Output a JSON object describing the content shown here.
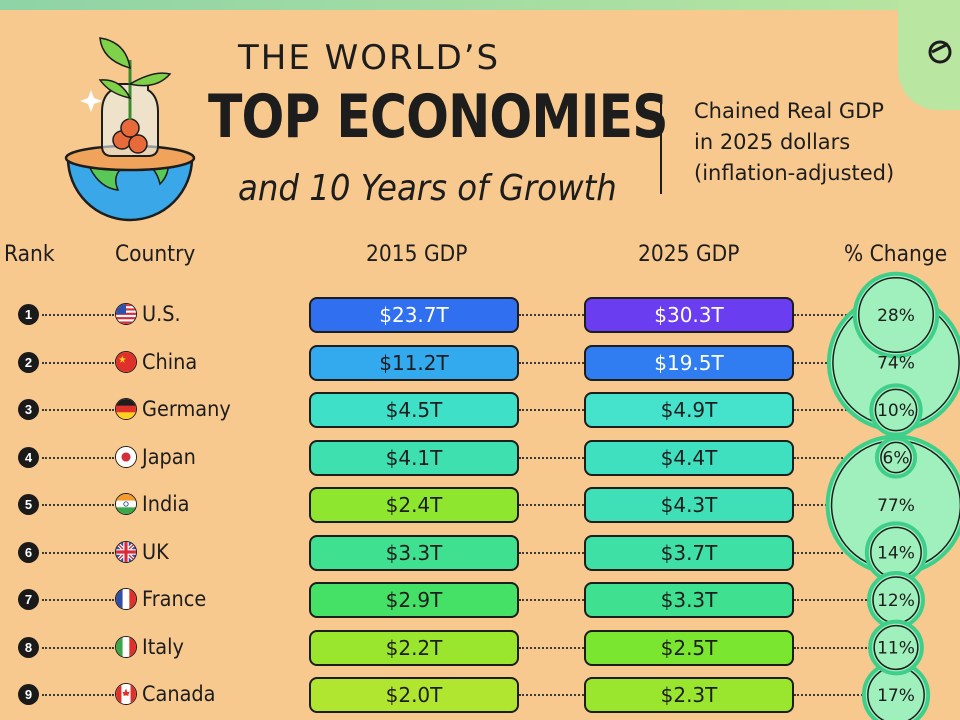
{
  "header": {
    "title_small": "THE WORLD’S",
    "title_big": "TOP ECONOMIES",
    "title_sub": "and 10 Years of Growth",
    "note_lines": [
      "Chained Real GDP",
      "in 2025 dollars",
      "(inflation-adjusted)"
    ]
  },
  "columns": {
    "rank": "Rank",
    "country": "Country",
    "gdp2015": "2015 GDP",
    "gdp2025": "2025 GDP",
    "change": "% Change"
  },
  "colors": {
    "background": "#f7c98f",
    "bubble_fill": "#9ff0bd",
    "bubble_ring": "#3fcf8a"
  },
  "chart_data": {
    "type": "table",
    "rows": [
      {
        "rank": "1",
        "country": "U.S.",
        "flag": "us-flag-icon",
        "gdp2015": "$23.7T",
        "gdp2025": "$30.3T",
        "change": "28%",
        "change_value": 28,
        "color2015": "#2f6ff0",
        "color2025": "#6a3ef0",
        "text2015": "#ffffff",
        "text2025": "#ffffff"
      },
      {
        "rank": "2",
        "country": "China",
        "flag": "china-flag-icon",
        "gdp2015": "$11.2T",
        "gdp2025": "$19.5T",
        "change": "74%",
        "change_value": 74,
        "color2015": "#33a9ee",
        "color2025": "#2f7df0",
        "text2015": "#1d1d1d",
        "text2025": "#ffffff"
      },
      {
        "rank": "3",
        "country": "Germany",
        "flag": "germany-flag-icon",
        "gdp2015": "$4.5T",
        "gdp2025": "$4.9T",
        "change": "10%",
        "change_value": 10,
        "color2015": "#3fe0c8",
        "color2025": "#45e3cc",
        "text2015": "#1d1d1d",
        "text2025": "#1d1d1d"
      },
      {
        "rank": "4",
        "country": "Japan",
        "flag": "japan-flag-icon",
        "gdp2015": "$4.1T",
        "gdp2025": "$4.4T",
        "change": "6%",
        "change_value": 6,
        "color2015": "#3fe0b0",
        "color2025": "#3fe0c0",
        "text2015": "#1d1d1d",
        "text2025": "#1d1d1d"
      },
      {
        "rank": "5",
        "country": "India",
        "flag": "india-flag-icon",
        "gdp2015": "$2.4T",
        "gdp2025": "$4.3T",
        "change": "77%",
        "change_value": 77,
        "color2015": "#8ee62f",
        "color2025": "#3fe0b8",
        "text2015": "#1d1d1d",
        "text2025": "#1d1d1d"
      },
      {
        "rank": "6",
        "country": "UK",
        "flag": "uk-flag-icon",
        "gdp2015": "$3.3T",
        "gdp2025": "$3.7T",
        "change": "14%",
        "change_value": 14,
        "color2015": "#3fe08f",
        "color2025": "#3fe0a6",
        "text2015": "#1d1d1d",
        "text2025": "#1d1d1d"
      },
      {
        "rank": "7",
        "country": "France",
        "flag": "france-flag-icon",
        "gdp2015": "$2.9T",
        "gdp2025": "$3.3T",
        "change": "12%",
        "change_value": 12,
        "color2015": "#45e066",
        "color2025": "#3fe08f",
        "text2015": "#1d1d1d",
        "text2025": "#1d1d1d"
      },
      {
        "rank": "8",
        "country": "Italy",
        "flag": "italy-flag-icon",
        "gdp2015": "$2.2T",
        "gdp2025": "$2.5T",
        "change": "11%",
        "change_value": 11,
        "color2015": "#9ae62f",
        "color2025": "#7ae62f",
        "text2015": "#1d1d1d",
        "text2025": "#1d1d1d"
      },
      {
        "rank": "9",
        "country": "Canada",
        "flag": "canada-flag-icon",
        "gdp2015": "$2.0T",
        "gdp2025": "$2.3T",
        "change": "17%",
        "change_value": 17,
        "color2015": "#b0e62f",
        "color2025": "#9ae62f",
        "text2015": "#1d1d1d",
        "text2025": "#1d1d1d"
      }
    ]
  }
}
